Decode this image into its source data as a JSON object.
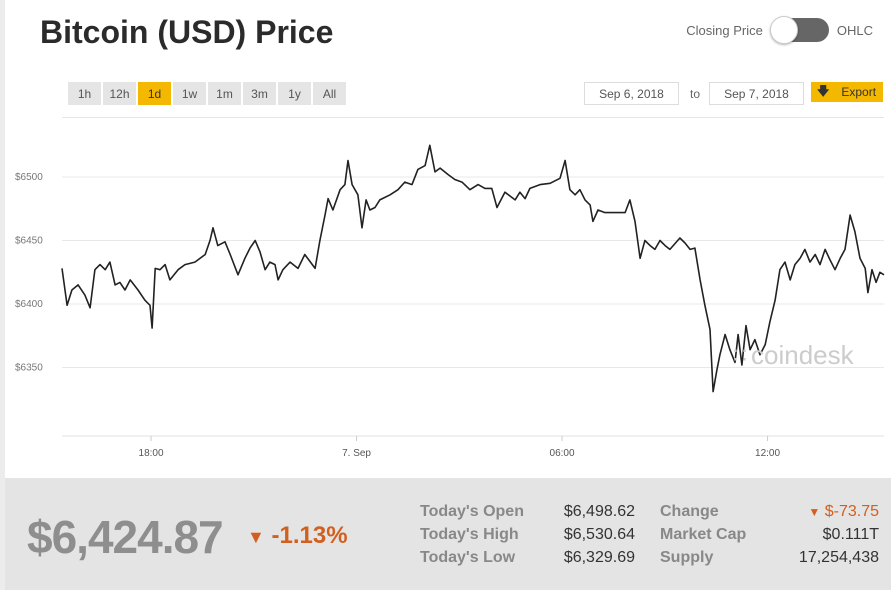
{
  "title": "Bitcoin (USD) Price",
  "toggle": {
    "left": "Closing Price",
    "right": "OHLC"
  },
  "ranges": [
    "1h",
    "12h",
    "1d",
    "1w",
    "1m",
    "3m",
    "1y",
    "All"
  ],
  "active_range": "1d",
  "date_from": "Sep 6, 2018",
  "to_label": "to",
  "date_to": "Sep 7, 2018",
  "export_label": "Export",
  "watermark": "coindesk",
  "colors": {
    "accent": "#f5b800",
    "down": "#d35f1e"
  },
  "chart_data": {
    "type": "line",
    "x_unit": "hours since ~15:24 Sep 6",
    "ylim": [
      6300,
      6560
    ],
    "y_ticks": [
      {
        "v": 6500,
        "label": "$6500"
      },
      {
        "v": 6450,
        "label": "$6450"
      },
      {
        "v": 6400,
        "label": "$6400"
      },
      {
        "v": 6350,
        "label": "$6350"
      }
    ],
    "x_ticks": [
      {
        "h": 2.6,
        "label": "18:00"
      },
      {
        "h": 8.6,
        "label": "7. Sep"
      },
      {
        "h": 14.6,
        "label": "06:00"
      },
      {
        "h": 20.6,
        "label": "12:00"
      }
    ],
    "points": [
      [
        0,
        6428
      ],
      [
        0.15,
        6399
      ],
      [
        0.29,
        6411
      ],
      [
        0.47,
        6415
      ],
      [
        0.67,
        6407
      ],
      [
        0.82,
        6397
      ],
      [
        0.96,
        6427
      ],
      [
        1.11,
        6431
      ],
      [
        1.26,
        6427
      ],
      [
        1.4,
        6433
      ],
      [
        1.55,
        6415
      ],
      [
        1.69,
        6417
      ],
      [
        1.84,
        6411
      ],
      [
        1.99,
        6419
      ],
      [
        2.22,
        6411
      ],
      [
        2.42,
        6403
      ],
      [
        2.57,
        6399
      ],
      [
        2.63,
        6381
      ],
      [
        2.72,
        6428
      ],
      [
        2.86,
        6427
      ],
      [
        3.01,
        6431
      ],
      [
        3.15,
        6419
      ],
      [
        3.39,
        6427
      ],
      [
        3.59,
        6431
      ],
      [
        3.88,
        6433
      ],
      [
        4.18,
        6439
      ],
      [
        4.32,
        6450
      ],
      [
        4.41,
        6460
      ],
      [
        4.55,
        6446
      ],
      [
        4.76,
        6449
      ],
      [
        4.91,
        6439
      ],
      [
        5.14,
        6423
      ],
      [
        5.34,
        6436
      ],
      [
        5.49,
        6444
      ],
      [
        5.64,
        6450
      ],
      [
        5.78,
        6441
      ],
      [
        5.93,
        6427
      ],
      [
        6.07,
        6433
      ],
      [
        6.22,
        6431
      ],
      [
        6.31,
        6419
      ],
      [
        6.45,
        6427
      ],
      [
        6.66,
        6433
      ],
      [
        6.89,
        6428
      ],
      [
        7.09,
        6439
      ],
      [
        7.39,
        6428
      ],
      [
        7.53,
        6450
      ],
      [
        7.68,
        6470
      ],
      [
        7.77,
        6483
      ],
      [
        7.91,
        6474
      ],
      [
        8.12,
        6490
      ],
      [
        8.26,
        6494
      ],
      [
        8.35,
        6513
      ],
      [
        8.47,
        6494
      ],
      [
        8.64,
        6486
      ],
      [
        8.76,
        6460
      ],
      [
        8.88,
        6482
      ],
      [
        8.99,
        6474
      ],
      [
        9.14,
        6476
      ],
      [
        9.28,
        6482
      ],
      [
        9.58,
        6486
      ],
      [
        9.81,
        6490
      ],
      [
        10.01,
        6496
      ],
      [
        10.22,
        6494
      ],
      [
        10.39,
        6506
      ],
      [
        10.6,
        6509
      ],
      [
        10.74,
        6525
      ],
      [
        10.89,
        6504
      ],
      [
        11.04,
        6507
      ],
      [
        11.27,
        6502
      ],
      [
        11.47,
        6498
      ],
      [
        11.68,
        6496
      ],
      [
        11.91,
        6490
      ],
      [
        12.15,
        6494
      ],
      [
        12.35,
        6491
      ],
      [
        12.55,
        6491
      ],
      [
        12.7,
        6476
      ],
      [
        12.93,
        6488
      ],
      [
        13.23,
        6482
      ],
      [
        13.37,
        6488
      ],
      [
        13.52,
        6483
      ],
      [
        13.66,
        6491
      ],
      [
        13.96,
        6494
      ],
      [
        14.25,
        6495
      ],
      [
        14.54,
        6499
      ],
      [
        14.69,
        6513
      ],
      [
        14.83,
        6490
      ],
      [
        14.98,
        6486
      ],
      [
        15.12,
        6490
      ],
      [
        15.27,
        6482
      ],
      [
        15.42,
        6478
      ],
      [
        15.5,
        6465
      ],
      [
        15.65,
        6474
      ],
      [
        15.85,
        6472
      ],
      [
        16.15,
        6472
      ],
      [
        16.44,
        6472
      ],
      [
        16.58,
        6482
      ],
      [
        16.73,
        6465
      ],
      [
        16.88,
        6436
      ],
      [
        17.02,
        6450
      ],
      [
        17.17,
        6446
      ],
      [
        17.31,
        6443
      ],
      [
        17.46,
        6450
      ],
      [
        17.61,
        6446
      ],
      [
        17.75,
        6443
      ],
      [
        18.04,
        6452
      ],
      [
        18.19,
        6448
      ],
      [
        18.34,
        6443
      ],
      [
        18.48,
        6444
      ],
      [
        18.63,
        6419
      ],
      [
        18.77,
        6399
      ],
      [
        18.92,
        6380
      ],
      [
        19.01,
        6331
      ],
      [
        19.12,
        6348
      ],
      [
        19.21,
        6360
      ],
      [
        19.36,
        6376
      ],
      [
        19.5,
        6364
      ],
      [
        19.65,
        6354
      ],
      [
        19.74,
        6376
      ],
      [
        19.85,
        6352
      ],
      [
        19.97,
        6383
      ],
      [
        20.09,
        6364
      ],
      [
        20.23,
        6372
      ],
      [
        20.38,
        6360
      ],
      [
        20.53,
        6368
      ],
      [
        20.67,
        6386
      ],
      [
        20.82,
        6403
      ],
      [
        20.96,
        6427
      ],
      [
        21.11,
        6433
      ],
      [
        21.26,
        6419
      ],
      [
        21.4,
        6431
      ],
      [
        21.55,
        6436
      ],
      [
        21.69,
        6443
      ],
      [
        21.84,
        6433
      ],
      [
        21.99,
        6439
      ],
      [
        22.13,
        6431
      ],
      [
        22.28,
        6443
      ],
      [
        22.42,
        6435
      ],
      [
        22.57,
        6427
      ],
      [
        22.72,
        6436
      ],
      [
        22.86,
        6443
      ],
      [
        23.01,
        6470
      ],
      [
        23.15,
        6457
      ],
      [
        23.3,
        6436
      ],
      [
        23.45,
        6428
      ],
      [
        23.53,
        6409
      ],
      [
        23.65,
        6427
      ],
      [
        23.77,
        6417
      ],
      [
        23.88,
        6425
      ],
      [
        24,
        6423
      ]
    ]
  },
  "summary": {
    "price": "$6,424.87",
    "change_pct": "-1.13%",
    "stats": [
      {
        "label": "Today's Open",
        "value": "$6,498.62"
      },
      {
        "label": "Today's High",
        "value": "$6,530.64"
      },
      {
        "label": "Today's Low",
        "value": "$6,329.69"
      }
    ],
    "stats2": [
      {
        "label": "Change",
        "value": "$-73.75"
      },
      {
        "label": "Market Cap",
        "value": "$0.111T"
      },
      {
        "label": "Supply",
        "value": "17,254,438"
      }
    ]
  }
}
